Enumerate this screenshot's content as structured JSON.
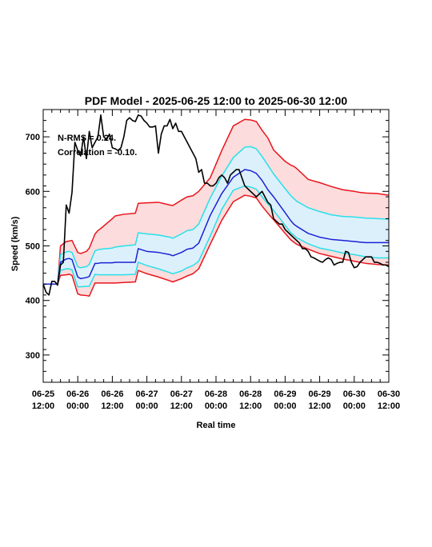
{
  "chart_data": {
    "type": "line",
    "title": "PDF Model - 2025-06-25 12:00 to 2025-06-30 12:00",
    "xlabel": "Real time",
    "ylabel": "Speed (km/s)",
    "xlim": [
      0,
      120
    ],
    "ylim": [
      250,
      750
    ],
    "x_ticks": [
      {
        "x": 0,
        "line1": "06-25",
        "line2": "12:00"
      },
      {
        "x": 12,
        "line1": "06-26",
        "line2": "00:00"
      },
      {
        "x": 24,
        "line1": "06-26",
        "line2": "12:00"
      },
      {
        "x": 36,
        "line1": "06-27",
        "line2": "00:00"
      },
      {
        "x": 48,
        "line1": "06-27",
        "line2": "12:00"
      },
      {
        "x": 60,
        "line1": "06-28",
        "line2": "00:00"
      },
      {
        "x": 72,
        "line1": "06-28",
        "line2": "12:00"
      },
      {
        "x": 84,
        "line1": "06-29",
        "line2": "00:00"
      },
      {
        "x": 96,
        "line1": "06-29",
        "line2": "12:00"
      },
      {
        "x": 108,
        "line1": "06-30",
        "line2": "00:00"
      },
      {
        "x": 120,
        "line1": "06-30",
        "line2": "12:00"
      }
    ],
    "y_ticks": [
      300,
      400,
      500,
      600,
      700
    ],
    "annotations": [
      "N-RMS = 0.24.",
      "Correlation = -0.10."
    ],
    "colors": {
      "outer": "#e8141c",
      "inner": "#28e0e8",
      "median": "#1a22d4",
      "observed": "#000000",
      "outer_fill": "#fcdcdc",
      "inner_fill": "#dcf0fc"
    },
    "x": [
      0,
      5,
      6,
      8,
      9,
      10,
      12,
      13,
      15,
      16,
      18,
      19,
      20,
      24,
      25,
      28,
      32,
      33,
      36,
      40,
      44,
      45,
      48,
      50,
      52,
      54,
      58,
      62,
      66,
      70,
      72,
      74,
      76,
      78,
      80,
      84,
      86,
      87,
      88,
      92,
      96,
      100,
      104,
      108,
      110,
      112,
      116,
      120
    ],
    "series": [
      {
        "band": "outer_upper",
        "values": [
          430,
          430,
          500,
          508,
          509,
          510,
          488,
          486,
          490,
          496,
          522,
          528,
          532,
          550,
          555,
          558,
          560,
          578,
          579,
          580,
          575,
          574,
          584,
          590,
          592,
          600,
          625,
          675,
          720,
          732,
          731,
          728,
          712,
          698,
          676,
          655,
          648,
          646,
          642,
          622,
          616,
          609,
          603,
          600,
          598,
          597,
          596,
          593
        ]
      },
      {
        "band": "inner_upper",
        "values": [
          430,
          430,
          484,
          489,
          490,
          488,
          462,
          460,
          462,
          466,
          491,
          493,
          494,
          496,
          498,
          500,
          502,
          524,
          522,
          520,
          516,
          514,
          522,
          528,
          530,
          540,
          588,
          628,
          662,
          681,
          682,
          678,
          664,
          648,
          632,
          605,
          592,
          587,
          582,
          570,
          563,
          557,
          554,
          553,
          552,
          551,
          550,
          549
        ]
      },
      {
        "band": "median",
        "values": [
          430,
          430,
          470,
          476,
          477,
          475,
          443,
          440,
          442,
          444,
          468,
          468,
          469,
          469,
          470,
          470,
          470,
          495,
          490,
          488,
          484,
          482,
          488,
          494,
          496,
          505,
          556,
          596,
          626,
          640,
          638,
          633,
          620,
          603,
          590,
          561,
          546,
          540,
          536,
          523,
          516,
          512,
          510,
          508,
          507,
          506,
          506,
          506
        ]
      },
      {
        "band": "inner_lower",
        "values": [
          430,
          430,
          455,
          458,
          458,
          456,
          425,
          425,
          426,
          426,
          448,
          447,
          447,
          447,
          447,
          447,
          448,
          470,
          464,
          458,
          451,
          449,
          454,
          460,
          464,
          472,
          518,
          567,
          602,
          610,
          608,
          604,
          590,
          577,
          565,
          538,
          524,
          520,
          515,
          504,
          496,
          492,
          487,
          484,
          482,
          480,
          478,
          478
        ]
      },
      {
        "band": "outer_lower",
        "values": [
          430,
          430,
          446,
          447,
          448,
          446,
          412,
          410,
          409,
          408,
          432,
          432,
          432,
          432,
          432,
          433,
          434,
          455,
          449,
          443,
          436,
          434,
          440,
          445,
          449,
          458,
          503,
          547,
          581,
          593,
          591,
          588,
          573,
          560,
          548,
          523,
          511,
          507,
          503,
          494,
          486,
          481,
          476,
          472,
          470,
          468,
          466,
          465
        ]
      },
      {
        "name": "observed",
        "x": [
          0,
          1,
          2,
          3,
          4,
          5,
          6,
          7,
          8,
          9,
          10,
          11,
          12,
          13,
          14,
          15,
          16,
          17,
          18,
          19,
          20,
          21,
          22,
          23,
          24,
          25,
          26,
          27,
          28,
          29,
          30,
          31,
          32,
          33,
          34,
          35,
          36,
          37,
          38,
          39,
          40,
          41,
          42,
          43,
          44,
          45,
          46,
          47,
          48,
          49,
          50,
          51,
          52,
          53,
          54,
          55,
          56,
          57,
          58,
          59,
          60,
          61,
          62,
          63,
          64,
          65,
          66,
          67,
          68,
          69,
          70,
          71,
          72,
          73,
          74,
          75,
          76,
          77,
          78,
          79,
          80,
          81,
          82,
          83,
          84,
          85,
          86,
          87,
          88,
          89,
          90,
          91,
          92,
          93,
          94,
          95,
          96,
          97,
          98,
          99,
          100,
          101,
          102,
          103,
          104,
          105,
          106,
          107,
          108,
          109,
          110,
          111,
          112,
          113,
          114,
          115,
          116,
          117,
          118,
          119,
          120
        ],
        "values": [
          430,
          415,
          410,
          435,
          435,
          428,
          465,
          470,
          575,
          560,
          598,
          690,
          675,
          665,
          700,
          660,
          710,
          680,
          690,
          700,
          740,
          700,
          695,
          705,
          680,
          678,
          675,
          680,
          700,
          730,
          735,
          730,
          728,
          740,
          738,
          730,
          725,
          718,
          718,
          720,
          670,
          705,
          720,
          720,
          732,
          715,
          725,
          710,
          710,
          700,
          690,
          680,
          670,
          660,
          635,
          640,
          615,
          615,
          610,
          610,
          615,
          625,
          630,
          625,
          615,
          630,
          635,
          640,
          640,
          625,
          610,
          605,
          600,
          595,
          590,
          595,
          600,
          590,
          580,
          575,
          550,
          545,
          540,
          540,
          530,
          525,
          520,
          515,
          510,
          505,
          495,
          495,
          490,
          480,
          478,
          475,
          472,
          470,
          475,
          478,
          475,
          465,
          468,
          470,
          470,
          490,
          488,
          470,
          460,
          462,
          470,
          475,
          480,
          480,
          480,
          470,
          470,
          468,
          465,
          465,
          462
        ]
      }
    ]
  }
}
